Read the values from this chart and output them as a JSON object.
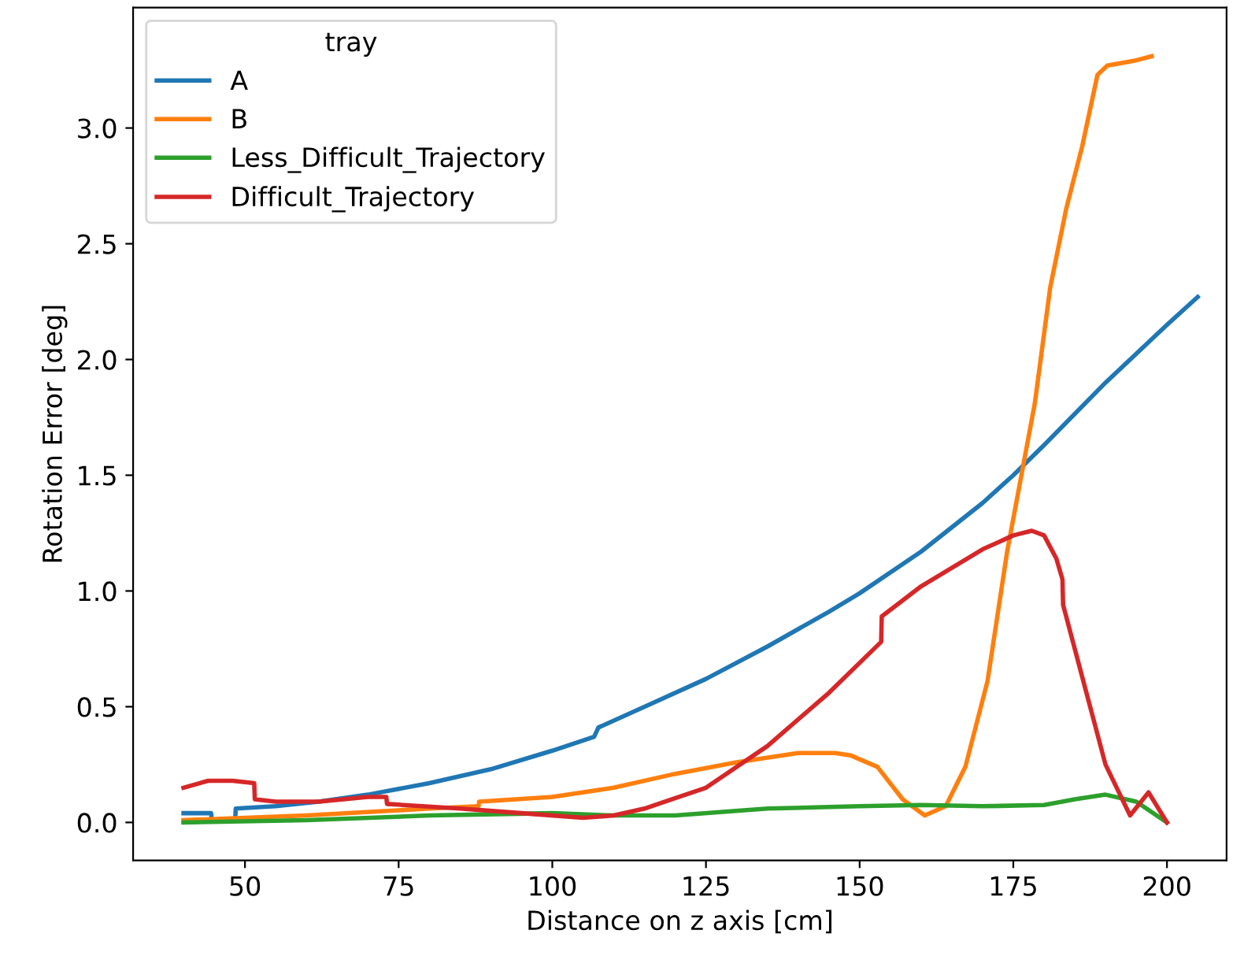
{
  "chart_data": {
    "type": "line",
    "xlabel": "Distance on z axis [cm]",
    "ylabel": "Rotation Error [deg]",
    "legend_title": "tray",
    "legend": "top left",
    "grid": false,
    "xlim": [
      31.8,
      209.7
    ],
    "xticks": [
      50,
      75,
      100,
      125,
      150,
      175,
      200
    ],
    "ylim": [
      -0.164,
      3.52
    ],
    "yticks": [
      {
        "value": 0,
        "label": "0.0"
      },
      0.5,
      {
        "value": 1,
        "label": "1.0"
      },
      1.5,
      {
        "value": 2,
        "label": "2.0"
      },
      2.5,
      {
        "value": 3,
        "label": "3.0"
      }
    ],
    "series": [
      {
        "name": "A",
        "color": "#1f77b4",
        "x": [
          40,
          44.5,
          44.6,
          48.4,
          48.5,
          55,
          62,
          70,
          80,
          90,
          100,
          106.8,
          107.5,
          115,
          125,
          135,
          145,
          150,
          160,
          170,
          175,
          180,
          190,
          200,
          205
        ],
        "values": [
          0.04,
          0.04,
          0.01,
          0.01,
          0.06,
          0.07,
          0.09,
          0.12,
          0.17,
          0.23,
          0.31,
          0.37,
          0.41,
          0.5,
          0.62,
          0.76,
          0.91,
          0.99,
          1.17,
          1.38,
          1.5,
          1.63,
          1.9,
          2.15,
          2.27
        ]
      },
      {
        "name": "B",
        "color": "#ff7f0e",
        "x": [
          40,
          60,
          80,
          88,
          88.1,
          100,
          110,
          120,
          130,
          140,
          146,
          148.5,
          152.9,
          157,
          160.6,
          164,
          167.2,
          170.8,
          174,
          178.5,
          181,
          183.6,
          186.2,
          188.7,
          190.3,
          194.6,
          197.5
        ],
        "values": [
          0.01,
          0.03,
          0.06,
          0.07,
          0.09,
          0.11,
          0.15,
          0.21,
          0.26,
          0.3,
          0.3,
          0.29,
          0.24,
          0.1,
          0.03,
          0.07,
          0.24,
          0.61,
          1.17,
          1.81,
          2.31,
          2.65,
          2.92,
          3.23,
          3.27,
          3.29,
          3.31
        ]
      },
      {
        "name": "Less_Difficult_Trajectory",
        "color": "#2ca02c",
        "x": [
          40,
          60,
          80,
          100,
          110,
          120,
          135,
          150,
          160,
          170,
          180,
          185,
          190,
          195,
          200
        ],
        "values": [
          0.0,
          0.01,
          0.03,
          0.04,
          0.03,
          0.03,
          0.06,
          0.07,
          0.075,
          0.07,
          0.075,
          0.1,
          0.12,
          0.09,
          0.0
        ]
      },
      {
        "name": "Difficult_Trajectory",
        "color": "#d62728",
        "x": [
          40,
          44,
          48,
          51.5,
          51.6,
          55,
          62,
          70,
          73,
          73.1,
          85,
          95,
          105,
          110,
          115,
          125,
          135,
          145,
          153.5,
          153.6,
          160,
          170,
          175,
          178,
          180,
          182,
          183,
          183.1,
          187,
          190,
          194,
          197,
          200
        ],
        "values": [
          0.15,
          0.18,
          0.18,
          0.17,
          0.1,
          0.09,
          0.09,
          0.11,
          0.11,
          0.08,
          0.06,
          0.04,
          0.02,
          0.03,
          0.06,
          0.15,
          0.33,
          0.56,
          0.78,
          0.89,
          1.02,
          1.18,
          1.24,
          1.26,
          1.24,
          1.14,
          1.05,
          0.94,
          0.55,
          0.25,
          0.03,
          0.13,
          0.0
        ]
      }
    ]
  }
}
